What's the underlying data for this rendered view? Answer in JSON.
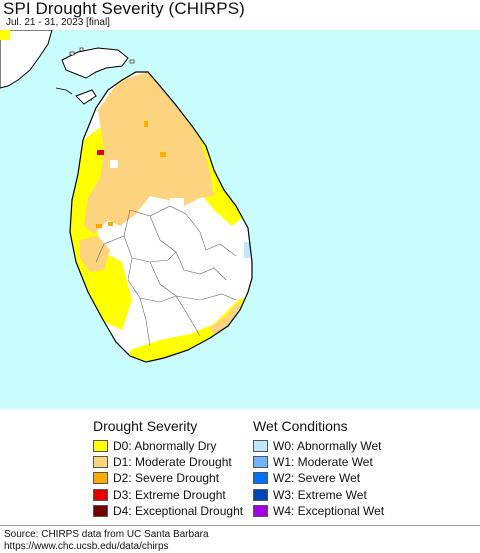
{
  "header": {
    "title": "SPI Drought Severity (CHIRPS)",
    "subtitle": "Jul. 21 - 31, 2023 [final]"
  },
  "map": {
    "ocean_color": "#c9fcfc",
    "land_color": "#ffffff",
    "boundary_color": "#000000",
    "district_line_color": "#666666"
  },
  "legend": {
    "drought": {
      "heading": "Drought Severity",
      "items": [
        {
          "label": "D0: Abnormally Dry",
          "color": "#ffff00"
        },
        {
          "label": "D1: Moderate Drought",
          "color": "#fcd37f"
        },
        {
          "label": "D2: Severe Drought",
          "color": "#ffaa00"
        },
        {
          "label": "D3: Extreme Drought",
          "color": "#e60000"
        },
        {
          "label": "D4: Exceptional Drought",
          "color": "#730000"
        }
      ]
    },
    "wet": {
      "heading": "Wet Conditions",
      "items": [
        {
          "label": "W0: Abnormally Wet",
          "color": "#bee8ff"
        },
        {
          "label": "W1: Moderate Wet",
          "color": "#73b2ff"
        },
        {
          "label": "W2: Severe Wet",
          "color": "#0070ff"
        },
        {
          "label": "W3: Extreme Wet",
          "color": "#0046b4"
        },
        {
          "label": "W4: Exceptional Wet",
          "color": "#a800e6"
        }
      ]
    }
  },
  "footer": {
    "source": "Source: CHIRPS data from UC Santa Barbara",
    "url": "https://www.chc.ucsb.edu/data/chirps"
  }
}
